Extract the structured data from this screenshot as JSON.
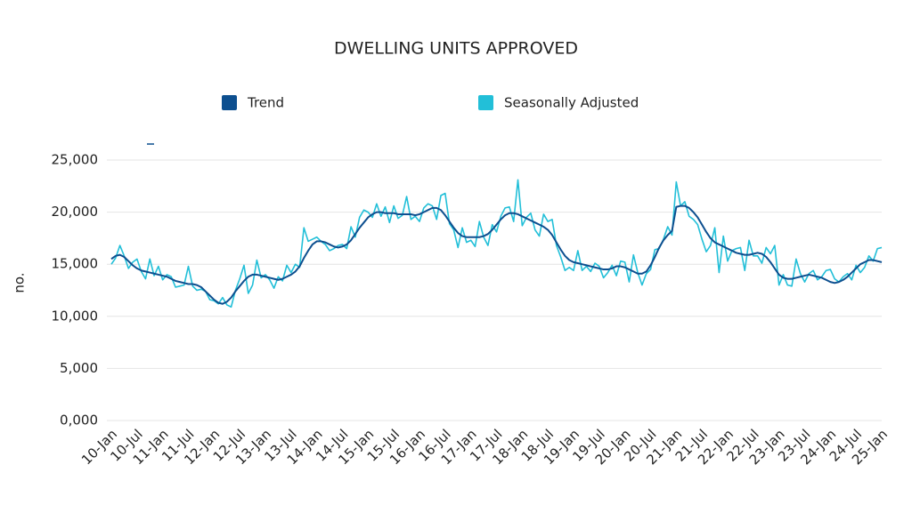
{
  "chart_data": {
    "type": "line",
    "title": "DWELLING UNITS APPROVED",
    "y_label": "no.",
    "legend": "top",
    "grid": true,
    "categories": [
      "10-Jan",
      null,
      null,
      null,
      null,
      null,
      "10-Jul",
      null,
      null,
      null,
      null,
      null,
      "11-Jan",
      null,
      null,
      null,
      null,
      null,
      "11-Jul",
      null,
      null,
      null,
      null,
      null,
      "12-Jan",
      null,
      null,
      null,
      null,
      null,
      "12-Jul",
      null,
      null,
      null,
      null,
      null,
      "13-Jan",
      null,
      null,
      null,
      null,
      null,
      "13-Jul",
      null,
      null,
      null,
      null,
      null,
      "14-Jan",
      null,
      null,
      null,
      null,
      null,
      "14-Jul",
      null,
      null,
      null,
      null,
      null,
      "15-Jan",
      null,
      null,
      null,
      null,
      null,
      "15-Jul",
      null,
      null,
      null,
      null,
      null,
      "16-Jan",
      null,
      null,
      null,
      null,
      null,
      "16-Jul",
      null,
      null,
      null,
      null,
      null,
      "17-Jan",
      null,
      null,
      null,
      null,
      null,
      "17-Jul",
      null,
      null,
      null,
      null,
      null,
      "18-Jan",
      null,
      null,
      null,
      null,
      null,
      "18-Jul",
      null,
      null,
      null,
      null,
      null,
      "19-Jan",
      null,
      null,
      null,
      null,
      null,
      "19-Jul",
      null,
      null,
      null,
      null,
      null,
      "20-Jan",
      null,
      null,
      null,
      null,
      null,
      "20-Jul",
      null,
      null,
      null,
      null,
      null,
      "21-Jan",
      null,
      null,
      null,
      null,
      null,
      "21-Jul",
      null,
      null,
      null,
      null,
      null,
      "22-Jan",
      null,
      null,
      null,
      null,
      null,
      "22-Jul",
      null,
      null,
      null,
      null,
      null,
      "23-Jan",
      null,
      null,
      null,
      null,
      null,
      "23-Jul",
      null,
      null,
      null,
      null,
      null,
      "24-Jan",
      null,
      null,
      null,
      null,
      null,
      "24-Jul",
      null,
      null,
      null,
      null,
      null,
      "25-Jan"
    ],
    "series": [
      {
        "name": "Trend",
        "color": "#0d4f8f",
        "values": [
          15500,
          15800,
          15900,
          15700,
          15300,
          14900,
          14600,
          14400,
          14300,
          14200,
          14100,
          14000,
          13900,
          13800,
          13600,
          13400,
          13300,
          13200,
          13100,
          13100,
          13000,
          12800,
          12400,
          12000,
          11600,
          11300,
          11200,
          11400,
          11800,
          12400,
          12900,
          13400,
          13800,
          14000,
          14000,
          13900,
          13800,
          13700,
          13600,
          13500,
          13600,
          13800,
          14000,
          14300,
          14800,
          15600,
          16300,
          16900,
          17200,
          17200,
          17100,
          16900,
          16700,
          16600,
          16700,
          16900,
          17300,
          17900,
          18500,
          19000,
          19500,
          19800,
          20000,
          20000,
          19900,
          19900,
          19900,
          19800,
          19800,
          19800,
          19800,
          19700,
          19800,
          20000,
          20200,
          20400,
          20400,
          20200,
          19700,
          19100,
          18500,
          18000,
          17700,
          17600,
          17600,
          17600,
          17600,
          17700,
          17900,
          18300,
          18800,
          19300,
          19700,
          19900,
          19900,
          19800,
          19600,
          19400,
          19200,
          19000,
          18800,
          18600,
          18300,
          17800,
          17100,
          16400,
          15800,
          15400,
          15200,
          15100,
          15000,
          14900,
          14800,
          14700,
          14600,
          14500,
          14500,
          14600,
          14800,
          14800,
          14700,
          14500,
          14300,
          14100,
          14100,
          14300,
          14900,
          15700,
          16600,
          17300,
          17800,
          18200,
          20500,
          20600,
          20600,
          20400,
          20000,
          19500,
          18800,
          18100,
          17500,
          17100,
          16900,
          16700,
          16500,
          16300,
          16100,
          16000,
          15900,
          15900,
          16000,
          16100,
          16000,
          15700,
          15200,
          14600,
          14000,
          13700,
          13600,
          13600,
          13700,
          13800,
          13900,
          14000,
          13900,
          13800,
          13700,
          13500,
          13300,
          13200,
          13300,
          13500,
          13800,
          14200,
          14600,
          15000,
          15200,
          15400,
          15400,
          15300,
          15200
        ]
      },
      {
        "name": "Seasonally Adjusted",
        "color": "#22bfd8",
        "values": [
          15000,
          15600,
          16800,
          15800,
          14600,
          15200,
          15500,
          14300,
          13600,
          15500,
          13900,
          14800,
          13500,
          14000,
          13800,
          12800,
          12900,
          13000,
          14800,
          12900,
          12500,
          12600,
          12400,
          11600,
          11500,
          11200,
          11800,
          11100,
          10900,
          12500,
          13600,
          14900,
          12200,
          13000,
          15400,
          13700,
          14000,
          13500,
          12700,
          13800,
          13400,
          14900,
          14200,
          15000,
          14700,
          18500,
          17200,
          17400,
          17600,
          17200,
          16900,
          16300,
          16500,
          16800,
          16900,
          16500,
          18600,
          17600,
          19500,
          20200,
          20000,
          19500,
          20800,
          19600,
          20500,
          19000,
          20600,
          19400,
          19700,
          21500,
          19300,
          19600,
          19100,
          20400,
          20800,
          20600,
          19300,
          21600,
          21800,
          18900,
          18300,
          16600,
          18500,
          17100,
          17300,
          16700,
          19100,
          17600,
          16800,
          18800,
          18100,
          19600,
          20400,
          20500,
          19100,
          23100,
          18700,
          19500,
          19900,
          18300,
          17700,
          19800,
          19100,
          19300,
          16800,
          15700,
          14400,
          14700,
          14400,
          16300,
          14400,
          14800,
          14300,
          15100,
          14800,
          13700,
          14200,
          14900,
          13900,
          15300,
          15200,
          13300,
          15900,
          14200,
          13000,
          14100,
          14500,
          16400,
          16500,
          17400,
          18600,
          17800,
          22900,
          20600,
          21000,
          19600,
          19300,
          18800,
          17400,
          16200,
          16800,
          18500,
          14200,
          17700,
          15300,
          16300,
          16500,
          16600,
          14400,
          17300,
          15800,
          15800,
          15100,
          16600,
          16000,
          16800,
          13000,
          14000,
          13000,
          12900,
          15500,
          14100,
          13300,
          14100,
          14400,
          13500,
          13800,
          14400,
          14500,
          13600,
          13300,
          13800,
          14100,
          13500,
          14900,
          14200,
          14700,
          15800,
          15300,
          16500,
          16600
        ]
      }
    ],
    "ylim": [
      0,
      25000
    ],
    "yticks": [
      {
        "value": 0,
        "label": "0,000"
      },
      {
        "value": 5000,
        "label": "5,000"
      },
      {
        "value": 10000,
        "label": "10,000"
      },
      {
        "value": 15000,
        "label": "15,000"
      },
      {
        "value": 20000,
        "label": "20,000"
      },
      {
        "value": 25000,
        "label": "25,000"
      }
    ]
  }
}
